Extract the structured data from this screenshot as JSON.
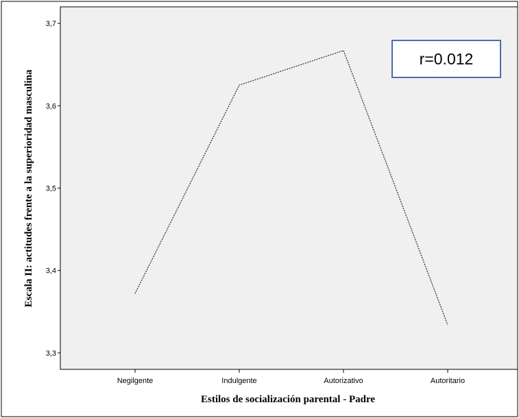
{
  "colors": {
    "plot_background": "#f0f0f0",
    "line": "#333333",
    "annotation_border": "#4a6fa5"
  },
  "annotation": {
    "text": "r=0.012"
  },
  "chart_data": {
    "type": "line",
    "categories": [
      "Negilgente",
      "Indulgente",
      "Autorizativo",
      "Autoritario"
    ],
    "values": [
      3.372,
      3.625,
      3.667,
      3.334
    ],
    "xlabel": "Estilos de socialización parental - Padre",
    "ylabel": "Escala II: actitudes frente a la superioridad masculina",
    "ylim": [
      3.28,
      3.72
    ],
    "yticks": [
      3.3,
      3.4,
      3.5,
      3.6,
      3.7
    ],
    "ytick_labels": [
      "3,3",
      "3,4",
      "3,5",
      "3,6",
      "3,7"
    ],
    "line_style": "dotted",
    "grid": false
  }
}
